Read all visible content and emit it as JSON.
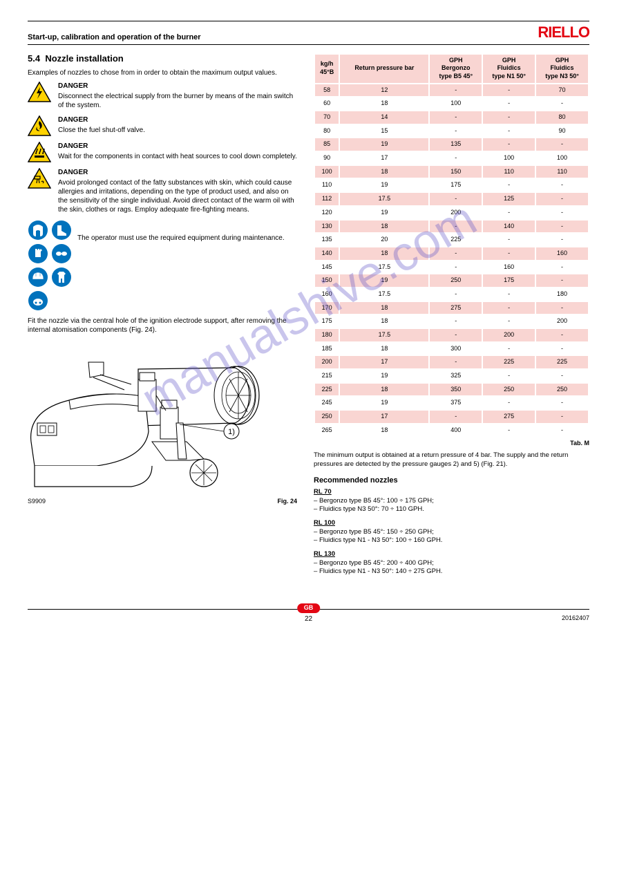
{
  "header": {
    "title": "Start-up, calibration and operation of the burner",
    "brand": "RIELLO"
  },
  "section": {
    "number": "5.4",
    "title": "Nozzle installation",
    "intro": "Examples of nozzles to chose from in order to obtain the maximum output values."
  },
  "warnings": {
    "danger_label": "DANGER",
    "items": [
      "Disconnect the electrical supply from the burner by means of the main switch of the system.",
      "Close the fuel shut-off valve.",
      "Wait for the components in contact with heat sources to cool down completely.",
      "Avoid prolonged contact of the fatty substances with skin, which could cause allergies and irritations, depending on the type of product used, and also on the sensitivity of the single individual. Avoid direct contact of the warm oil with the skin, clothes or rags. Employ adequate fire-fighting means."
    ],
    "ppe_text": "The operator must use the required equipment during maintenance."
  },
  "colors": {
    "brand": "#e30613",
    "table_cell": "#f9d5d2",
    "watermark": "rgba(100,90,200,0.35)"
  },
  "burner": {
    "text": "Fit the nozzle via the central hole of the ignition electrode support, after removing the internal atomisation components (Fig. 24).",
    "callout": "1",
    "caption_label": "Fig. 24",
    "caption_code": "S9909"
  },
  "table": {
    "caption": "Tab. M",
    "head": {
      "c1_a": "kg/h",
      "c1_b": "45°B",
      "c2": "Return pressure bar",
      "c3_a": "GPH",
      "c3_b": "Bergonzo",
      "c3_c": "type B5 45°",
      "c4_a": "GPH",
      "c4_b": "Fluidics",
      "c4_c": "type N1 50°",
      "c5_a": "GPH",
      "c5_b": "Fluidics",
      "c5_c": "type N3 50°"
    },
    "rows": [
      {
        "v": [
          "58",
          "12",
          "-",
          "-",
          "70"
        ],
        "pink": true
      },
      {
        "v": [
          "60",
          "18",
          "100",
          "-",
          "-"
        ],
        "pink": false
      },
      {
        "v": [
          "70",
          "14",
          "-",
          "-",
          "80"
        ],
        "pink": true
      },
      {
        "v": [
          "80",
          "15",
          "-",
          "-",
          "90"
        ],
        "pink": false
      },
      {
        "v": [
          "85",
          "19",
          "135",
          "-",
          "-"
        ],
        "pink": true
      },
      {
        "v": [
          "90",
          "17",
          "-",
          "100",
          "100"
        ],
        "pink": false
      },
      {
        "v": [
          "100",
          "18",
          "150",
          "110",
          "110"
        ],
        "pink": true
      },
      {
        "v": [
          "110",
          "19",
          "175",
          "-",
          "-"
        ],
        "pink": false
      },
      {
        "v": [
          "112",
          "17.5",
          "-",
          "125",
          "-"
        ],
        "pink": true
      },
      {
        "v": [
          "120",
          "19",
          "200",
          "-",
          "-"
        ],
        "pink": false
      },
      {
        "v": [
          "130",
          "18",
          "-",
          "140",
          "-"
        ],
        "pink": true
      },
      {
        "v": [
          "135",
          "20",
          "225",
          "-",
          "-"
        ],
        "pink": false
      },
      {
        "v": [
          "140",
          "18",
          "-",
          "-",
          "160"
        ],
        "pink": true
      },
      {
        "v": [
          "145",
          "17.5",
          "-",
          "160",
          "-"
        ],
        "pink": false
      },
      {
        "v": [
          "150",
          "19",
          "250",
          "175",
          "-"
        ],
        "pink": true
      },
      {
        "v": [
          "160",
          "17.5",
          "-",
          "-",
          "180"
        ],
        "pink": false
      },
      {
        "v": [
          "170",
          "18",
          "275",
          "-",
          "-"
        ],
        "pink": true
      },
      {
        "v": [
          "175",
          "18",
          "-",
          "-",
          "200"
        ],
        "pink": false
      },
      {
        "v": [
          "180",
          "17.5",
          "-",
          "200",
          "-"
        ],
        "pink": true
      },
      {
        "v": [
          "185",
          "18",
          "300",
          "-",
          "-"
        ],
        "pink": false
      },
      {
        "v": [
          "200",
          "17",
          "-",
          "225",
          "225"
        ],
        "pink": true
      },
      {
        "v": [
          "215",
          "19",
          "325",
          "-",
          "-"
        ],
        "pink": false
      },
      {
        "v": [
          "225",
          "18",
          "350",
          "250",
          "250"
        ],
        "pink": true
      },
      {
        "v": [
          "245",
          "19",
          "375",
          "-",
          "-"
        ],
        "pink": false
      },
      {
        "v": [
          "250",
          "17",
          "-",
          "275",
          "-"
        ],
        "pink": true
      },
      {
        "v": [
          "265",
          "18",
          "400",
          "-",
          "-"
        ],
        "pink": false
      }
    ],
    "note": "The minimum output is obtained at a return pressure of 4 bar. The supply and the return pressures are detected by the pressure gauges 2) and 5) (Fig. 21)."
  },
  "recommended": {
    "title": "Recommended nozzles",
    "items": [
      {
        "model": "RL 70",
        "lines": [
          "Bergonzo type B5 45°: 100 ÷ 175 GPH;",
          "Fluidics type N3 50°: 70 ÷ 110 GPH."
        ]
      },
      {
        "model": "RL 100",
        "lines": [
          "Bergonzo type B5 45°: 150 ÷ 250 GPH;",
          "Fluidics type N1 - N3 50°: 100 ÷ 160 GPH."
        ]
      },
      {
        "model": "RL 130",
        "lines": [
          "Bergonzo type B5 45°: 200 ÷ 400 GPH;",
          "Fluidics type N1 - N3 50°: 140 ÷ 275 GPH."
        ]
      }
    ]
  },
  "footer": {
    "lang": "GB",
    "page": "22",
    "doc": "20162407"
  },
  "watermark": "manualshive.com"
}
